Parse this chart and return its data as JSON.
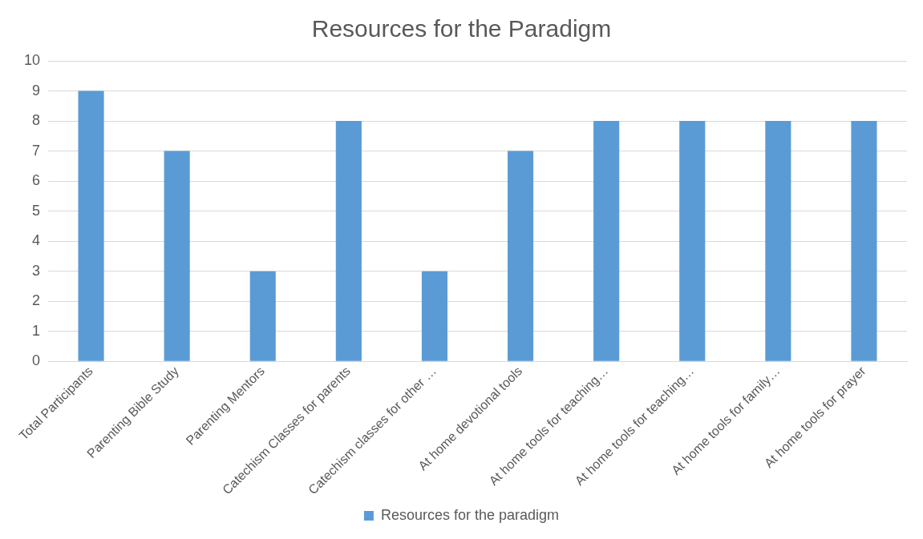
{
  "chart_data": {
    "type": "bar",
    "title": "Resources for the Paradigm",
    "categories": [
      "Total Participants",
      "Parenting Bible Study",
      "Parenting Mentors",
      "Catechism Classes for parents",
      "Catechism classes for other …",
      "At home devotional tools",
      "At home tools for teaching…",
      "At home tools for teaching…",
      "At home tools for family…",
      "At home tools for prayer"
    ],
    "series": [
      {
        "name": "Resources for the paradigm",
        "color": "#5b9bd5",
        "values": [
          9,
          7,
          3,
          8,
          3,
          7,
          8,
          8,
          8,
          8
        ]
      }
    ],
    "ylim": [
      0,
      10
    ],
    "yticks": [
      0,
      1,
      2,
      3,
      4,
      5,
      6,
      7,
      8,
      9,
      10
    ],
    "grid": "y",
    "legend": "bottom"
  }
}
